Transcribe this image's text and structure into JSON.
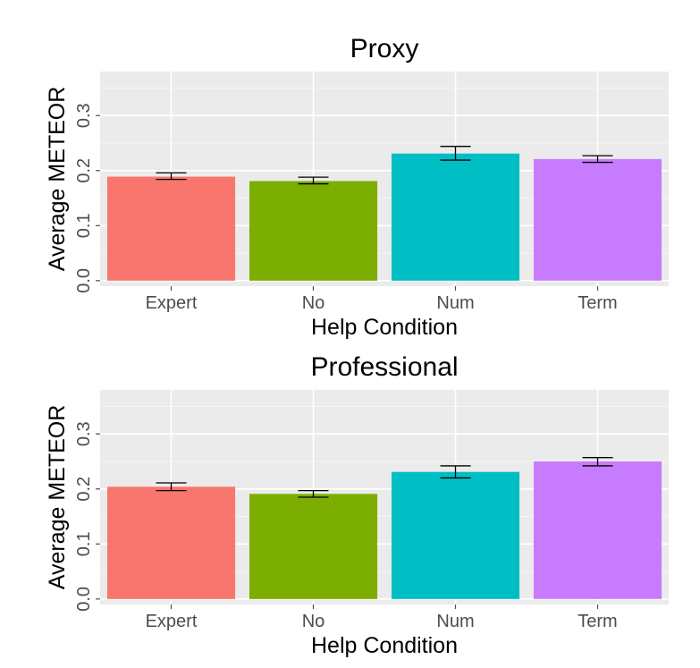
{
  "colors": {
    "panel_bg": "#ebebeb",
    "grid_major": "#ffffff",
    "grid_minor": "#f5f5f5",
    "tick_text": "#4d4d4d",
    "errorbar": "#000000"
  },
  "chart_data": [
    {
      "type": "bar",
      "title": "Proxy",
      "xlabel": "Help Condition",
      "ylabel": "Average METEOR",
      "ylim": [
        -0.01,
        0.38
      ],
      "yticks": [
        0.0,
        0.1,
        0.2,
        0.3
      ],
      "ytick_labels": [
        "0.0",
        "0.1",
        "0.2",
        "0.3"
      ],
      "categories": [
        "Expert",
        "No",
        "Num",
        "Term"
      ],
      "values": [
        0.189,
        0.181,
        0.231,
        0.221
      ],
      "err_low": [
        0.184,
        0.176,
        0.219,
        0.215
      ],
      "err_high": [
        0.196,
        0.188,
        0.244,
        0.227
      ],
      "colors": [
        "#f8766d",
        "#7cae00",
        "#00bfc4",
        "#c77cff"
      ],
      "grid": true,
      "legend": "none"
    },
    {
      "type": "bar",
      "title": "Professional",
      "xlabel": "Help Condition",
      "ylabel": "Average METEOR",
      "ylim": [
        -0.01,
        0.38
      ],
      "yticks": [
        0.0,
        0.1,
        0.2,
        0.3
      ],
      "ytick_labels": [
        "0.0",
        "0.1",
        "0.2",
        "0.3"
      ],
      "categories": [
        "Expert",
        "No",
        "Num",
        "Term"
      ],
      "values": [
        0.204,
        0.191,
        0.231,
        0.25
      ],
      "err_low": [
        0.197,
        0.185,
        0.22,
        0.242
      ],
      "err_high": [
        0.211,
        0.197,
        0.242,
        0.257
      ],
      "colors": [
        "#f8766d",
        "#7cae00",
        "#00bfc4",
        "#c77cff"
      ],
      "grid": true,
      "legend": "none"
    }
  ]
}
